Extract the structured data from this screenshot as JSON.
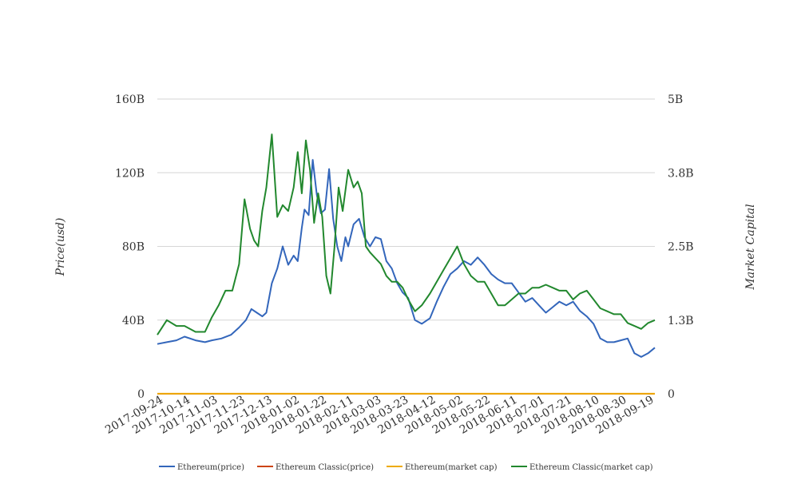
{
  "chart_data": {
    "type": "line",
    "left_axis_label": "Price(usd)",
    "right_axis_label": "Market Capital",
    "left_ticks": [
      "0",
      "40B",
      "80B",
      "120B",
      "160B"
    ],
    "left_ylim": [
      0,
      160
    ],
    "right_ticks": [
      "0",
      "1.3B",
      "2.5B",
      "3.8B",
      "5B"
    ],
    "right_ylim": [
      0,
      5
    ],
    "x_ticks": [
      "2017-09-24",
      "2017-10-14",
      "2017-11-03",
      "2017-11-23",
      "2017-12-13",
      "2018-01-02",
      "2018-01-22",
      "2018-02-11",
      "2018-03-03",
      "2018-03-23",
      "2018-04-12",
      "2018-05-02",
      "2018-05-22",
      "2018-06-11",
      "2018-07-01",
      "2018-07-21",
      "2018-08-10",
      "2018-08-30",
      "2018-09-19"
    ],
    "x_range": [
      "2017-09-24",
      "2018-09-24"
    ],
    "grid": true,
    "legend_position": "bottom",
    "series": [
      {
        "name": "Ethereum(price)",
        "axis": "left",
        "color": "#3366bb",
        "x": [
          "2017-09-24",
          "2017-10-01",
          "2017-10-08",
          "2017-10-14",
          "2017-10-22",
          "2017-10-29",
          "2017-11-03",
          "2017-11-10",
          "2017-11-17",
          "2017-11-23",
          "2017-11-28",
          "2017-12-02",
          "2017-12-06",
          "2017-12-10",
          "2017-12-13",
          "2017-12-17",
          "2017-12-21",
          "2017-12-25",
          "2017-12-29",
          "2018-01-02",
          "2018-01-05",
          "2018-01-08",
          "2018-01-10",
          "2018-01-13",
          "2018-01-16",
          "2018-01-19",
          "2018-01-22",
          "2018-01-25",
          "2018-01-28",
          "2018-01-31",
          "2018-02-03",
          "2018-02-06",
          "2018-02-09",
          "2018-02-11",
          "2018-02-15",
          "2018-02-19",
          "2018-02-23",
          "2018-02-27",
          "2018-03-03",
          "2018-03-07",
          "2018-03-11",
          "2018-03-15",
          "2018-03-19",
          "2018-03-23",
          "2018-03-27",
          "2018-04-01",
          "2018-04-06",
          "2018-04-12",
          "2018-04-17",
          "2018-04-22",
          "2018-04-27",
          "2018-05-02",
          "2018-05-07",
          "2018-05-12",
          "2018-05-17",
          "2018-05-22",
          "2018-05-27",
          "2018-06-01",
          "2018-06-06",
          "2018-06-11",
          "2018-06-16",
          "2018-06-21",
          "2018-06-26",
          "2018-07-01",
          "2018-07-06",
          "2018-07-11",
          "2018-07-16",
          "2018-07-21",
          "2018-07-26",
          "2018-07-31",
          "2018-08-05",
          "2018-08-10",
          "2018-08-15",
          "2018-08-20",
          "2018-08-25",
          "2018-08-30",
          "2018-09-04",
          "2018-09-09",
          "2018-09-14",
          "2018-09-19",
          "2018-09-24"
        ],
        "values": [
          27,
          28,
          29,
          31,
          29,
          28,
          29,
          30,
          32,
          36,
          40,
          46,
          44,
          42,
          44,
          60,
          68,
          80,
          70,
          75,
          72,
          90,
          100,
          97,
          127,
          108,
          98,
          100,
          122,
          95,
          80,
          72,
          85,
          80,
          92,
          95,
          85,
          80,
          85,
          84,
          72,
          68,
          60,
          55,
          52,
          40,
          38,
          41,
          50,
          58,
          65,
          68,
          72,
          70,
          74,
          70,
          65,
          62,
          60,
          60,
          55,
          50,
          52,
          48,
          44,
          47,
          50,
          48,
          50,
          45,
          42,
          38,
          30,
          28,
          28,
          29,
          30,
          22,
          20,
          22,
          25
        ]
      },
      {
        "name": "Ethereum Classic(price)",
        "axis": "left",
        "color": "#cc4411",
        "x": [
          "2017-09-24",
          "2018-09-24"
        ],
        "values": [
          0.02,
          0.02
        ]
      },
      {
        "name": "Ethereum(market cap)",
        "axis": "left",
        "color": "#eeaa00",
        "x": [
          "2017-09-24",
          "2018-09-24"
        ],
        "values": [
          0.05,
          0.05
        ]
      },
      {
        "name": "Ethereum Classic(market cap)",
        "axis": "right",
        "color": "#22882e",
        "x": [
          "2017-09-24",
          "2017-10-01",
          "2017-10-08",
          "2017-10-14",
          "2017-10-22",
          "2017-10-29",
          "2017-11-03",
          "2017-11-08",
          "2017-11-13",
          "2017-11-18",
          "2017-11-23",
          "2017-11-27",
          "2017-12-01",
          "2017-12-04",
          "2017-12-07",
          "2017-12-10",
          "2017-12-13",
          "2017-12-17",
          "2017-12-21",
          "2017-12-25",
          "2017-12-29",
          "2018-01-02",
          "2018-01-05",
          "2018-01-08",
          "2018-01-11",
          "2018-01-14",
          "2018-01-17",
          "2018-01-20",
          "2018-01-23",
          "2018-01-26",
          "2018-01-29",
          "2018-02-01",
          "2018-02-04",
          "2018-02-07",
          "2018-02-11",
          "2018-02-15",
          "2018-02-18",
          "2018-02-21",
          "2018-02-24",
          "2018-02-27",
          "2018-03-03",
          "2018-03-07",
          "2018-03-11",
          "2018-03-15",
          "2018-03-19",
          "2018-03-23",
          "2018-03-27",
          "2018-04-01",
          "2018-04-06",
          "2018-04-12",
          "2018-04-17",
          "2018-04-22",
          "2018-04-27",
          "2018-05-02",
          "2018-05-07",
          "2018-05-12",
          "2018-05-17",
          "2018-05-22",
          "2018-05-27",
          "2018-06-01",
          "2018-06-06",
          "2018-06-11",
          "2018-06-16",
          "2018-06-21",
          "2018-06-26",
          "2018-07-01",
          "2018-07-06",
          "2018-07-11",
          "2018-07-16",
          "2018-07-21",
          "2018-07-26",
          "2018-07-31",
          "2018-08-05",
          "2018-08-10",
          "2018-08-15",
          "2018-08-20",
          "2018-08-25",
          "2018-08-30",
          "2018-09-04",
          "2018-09-09",
          "2018-09-14",
          "2018-09-19",
          "2018-09-24"
        ],
        "values": [
          1.0,
          1.25,
          1.15,
          1.15,
          1.05,
          1.05,
          1.3,
          1.5,
          1.75,
          1.75,
          2.2,
          3.3,
          2.8,
          2.6,
          2.5,
          3.1,
          3.5,
          4.4,
          3.0,
          3.2,
          3.1,
          3.5,
          4.1,
          3.4,
          4.3,
          3.8,
          2.9,
          3.4,
          3.0,
          2.0,
          1.7,
          2.5,
          3.5,
          3.1,
          3.8,
          3.5,
          3.6,
          3.4,
          2.5,
          2.4,
          2.3,
          2.2,
          2.0,
          1.9,
          1.9,
          1.8,
          1.6,
          1.4,
          1.5,
          1.7,
          1.9,
          2.1,
          2.3,
          2.5,
          2.2,
          2.0,
          1.9,
          1.9,
          1.7,
          1.5,
          1.5,
          1.6,
          1.7,
          1.7,
          1.8,
          1.8,
          1.85,
          1.8,
          1.75,
          1.75,
          1.6,
          1.7,
          1.75,
          1.6,
          1.45,
          1.4,
          1.35,
          1.35,
          1.2,
          1.15,
          1.1,
          1.2,
          1.25
        ]
      }
    ]
  }
}
